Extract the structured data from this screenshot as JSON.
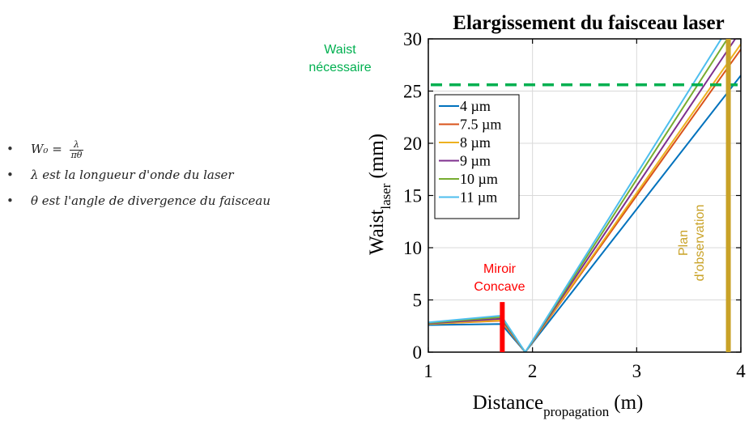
{
  "bullets": {
    "formula_lhs": "W₀ =",
    "formula_num": "λ",
    "formula_den": "πθ",
    "item2": "λ est la longueur d'onde du laser",
    "item3": "θ est l'angle de divergence du faisceau"
  },
  "chart_data": {
    "type": "line",
    "title": "Elargissement du faisceau laser",
    "xlabel_main": "Distance",
    "xlabel_sub": "propagation",
    "xlabel_unit": "(m)",
    "ylabel_main": "Waist",
    "ylabel_sub": "laser",
    "ylabel_unit": "(mm)",
    "xlim": [
      1,
      4
    ],
    "ylim": [
      0,
      30
    ],
    "xticks": [
      1,
      2,
      3,
      4
    ],
    "yticks": [
      0,
      5,
      10,
      15,
      20,
      25,
      30
    ],
    "grid": true,
    "legend_position": "upper-left",
    "series": [
      {
        "name": "4 µm",
        "color": "#0072BD",
        "x": [
          1,
          1.7,
          1.93,
          4
        ],
        "y": [
          2.6,
          2.7,
          0,
          26.5
        ]
      },
      {
        "name": "7.5 µm",
        "color": "#D95319",
        "x": [
          1,
          1.7,
          1.93,
          4
        ],
        "y": [
          2.7,
          3.0,
          0,
          29.0
        ]
      },
      {
        "name": "8 µm",
        "color": "#EDB120",
        "x": [
          1,
          1.7,
          1.93,
          4
        ],
        "y": [
          2.7,
          3.05,
          0,
          29.5
        ]
      },
      {
        "name": "9 µm",
        "color": "#7E2F8E",
        "x": [
          1,
          1.7,
          1.93,
          4
        ],
        "y": [
          2.75,
          3.2,
          0,
          30.8
        ]
      },
      {
        "name": "10 µm",
        "color": "#77AC30",
        "x": [
          1,
          1.7,
          1.93,
          4
        ],
        "y": [
          2.8,
          3.35,
          0,
          32.0
        ]
      },
      {
        "name": "11 µm",
        "color": "#4DBEEE",
        "x": [
          1,
          1.7,
          1.93,
          4
        ],
        "y": [
          2.85,
          3.5,
          0,
          33.0
        ]
      }
    ],
    "waist_line": {
      "y": 25.6,
      "color": "#00B050",
      "label_line1": "Waist",
      "label_line2": "nécessaire"
    },
    "mirror": {
      "x": 1.71,
      "y_top": 4.8,
      "color": "#FF0000",
      "label_line1": "Miroir",
      "label_line2": "Concave"
    },
    "observation_plane": {
      "x": 3.88,
      "color": "#C9A227",
      "label_line1": "Plan",
      "label_line2": "d'observation"
    }
  }
}
